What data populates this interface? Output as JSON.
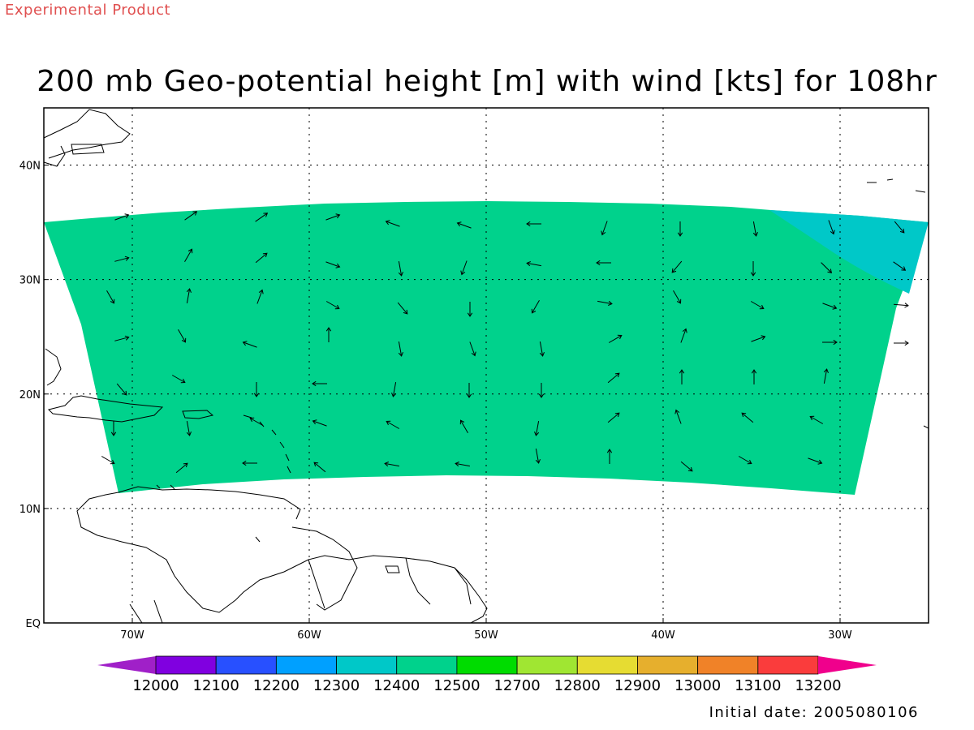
{
  "header": {
    "product_note": "Experimental Product",
    "title": "200 mb Geo-potential height [m] with wind [kts] for 108hr",
    "initial_date": "Initial date: 2005080106"
  },
  "map": {
    "lon_range": [
      -75,
      -25
    ],
    "lat_range": [
      0,
      45
    ],
    "grid": true,
    "lon_ticks": [
      {
        "value": -70,
        "label": "70W"
      },
      {
        "value": -60,
        "label": "60W"
      },
      {
        "value": -50,
        "label": "50W"
      },
      {
        "value": -40,
        "label": "40W"
      },
      {
        "value": -30,
        "label": "30W"
      }
    ],
    "lat_ticks": [
      {
        "value": 0,
        "label": "EQ"
      },
      {
        "value": 10,
        "label": "10N"
      },
      {
        "value": 20,
        "label": "20N"
      },
      {
        "value": 30,
        "label": "30N"
      },
      {
        "value": 40,
        "label": "40N"
      }
    ],
    "field_colors": {
      "band_12500": "#00d28c",
      "band_12400": "#00c8c8"
    }
  },
  "colorbar": {
    "colors": [
      "#a020c8",
      "#8000e0",
      "#2850ff",
      "#00a0ff",
      "#00c8c8",
      "#00d28c",
      "#00dc00",
      "#a0e632",
      "#e6dc32",
      "#e6af2d",
      "#f08228",
      "#fa3c3c",
      "#f0008c"
    ],
    "labels": [
      "12000",
      "12100",
      "12200",
      "12300",
      "12400",
      "12500",
      "12700",
      "12800",
      "12900",
      "13000",
      "13100",
      "13200"
    ]
  }
}
